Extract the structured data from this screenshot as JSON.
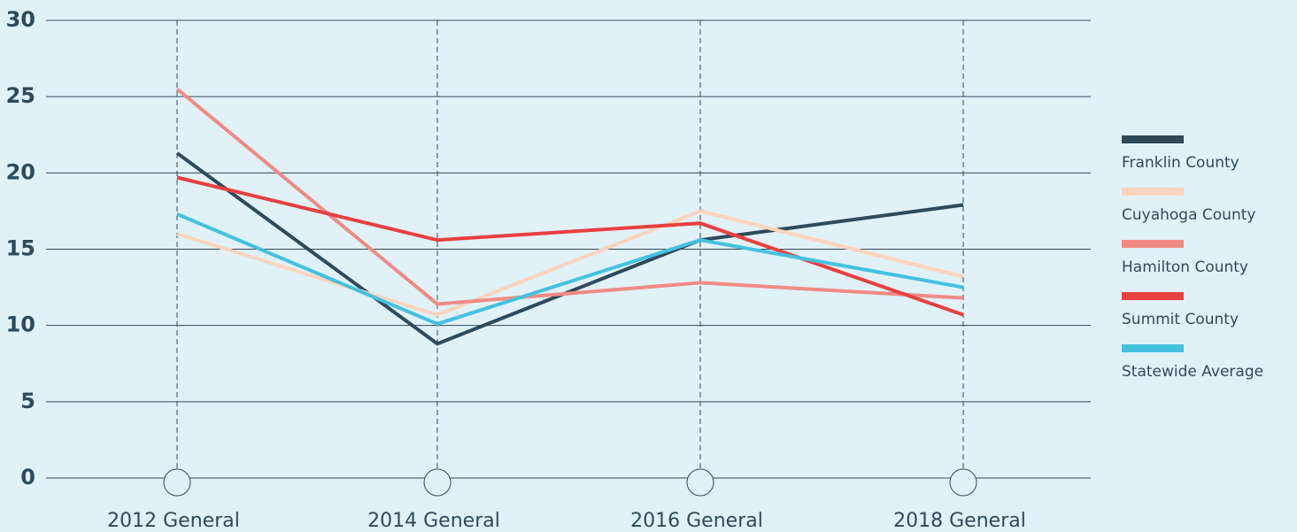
{
  "chart_data": {
    "type": "line",
    "categories": [
      "2012 General",
      "2014 General",
      "2016 General",
      "2018 General"
    ],
    "series": [
      {
        "name": "Franklin County",
        "color": "#2f4a5a",
        "values": [
          21.3,
          8.8,
          15.6,
          17.9
        ]
      },
      {
        "name": "Cuyahoga County",
        "color": "#fad5bd",
        "values": [
          16.0,
          10.7,
          17.5,
          13.2
        ]
      },
      {
        "name": "Hamilton County",
        "color": "#f08b84",
        "values": [
          25.5,
          11.4,
          12.8,
          11.8
        ]
      },
      {
        "name": "Summit County",
        "color": "#e8403f",
        "values": [
          19.7,
          15.6,
          16.7,
          10.7
        ]
      },
      {
        "name": "Statewide Average",
        "color": "#45c1df",
        "values": [
          17.3,
          10.1,
          15.6,
          12.5
        ]
      }
    ],
    "ylim": [
      0,
      30
    ],
    "yticks": [
      0,
      5,
      10,
      15,
      20,
      25,
      30
    ],
    "grid": true,
    "legend": "right"
  }
}
